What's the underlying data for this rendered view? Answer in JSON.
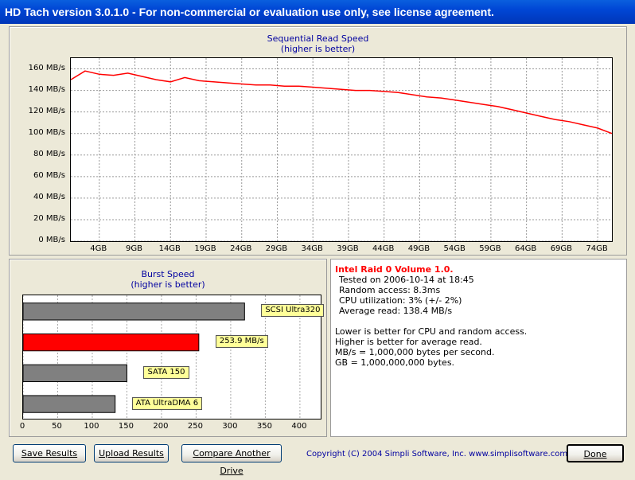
{
  "window": {
    "title": "HD Tach version 3.0.1.0  - For non-commercial or evaluation use only, see license agreement."
  },
  "read_chart": {
    "title": "Sequential Read Speed",
    "subtitle": "(higher is better)",
    "y_ticks": [
      "160 MB/s",
      "140 MB/s",
      "120 MB/s",
      "100 MB/s",
      "80 MB/s",
      "60 MB/s",
      "40 MB/s",
      "20 MB/s",
      "0 MB/s"
    ],
    "x_ticks": [
      "4GB",
      "9GB",
      "14GB",
      "19GB",
      "24GB",
      "29GB",
      "34GB",
      "39GB",
      "44GB",
      "49GB",
      "54GB",
      "59GB",
      "64GB",
      "69GB",
      "74GB"
    ],
    "line_color": "#ff0000"
  },
  "burst_chart": {
    "title": "Burst Speed",
    "subtitle": "(higher is better)",
    "x_ticks": [
      "0",
      "50",
      "100",
      "150",
      "200",
      "250",
      "300",
      "350",
      "400"
    ]
  },
  "chart_data": [
    {
      "type": "line",
      "title": "Sequential Read Speed",
      "subtitle": "(higher is better)",
      "ylabel": "MB/s",
      "xlim": [
        0,
        76
      ],
      "ylim": [
        0,
        170
      ],
      "series": [
        {
          "x": [
            0,
            2,
            4,
            6,
            8,
            10,
            12,
            14,
            16,
            18,
            20,
            22,
            24,
            26,
            28,
            30,
            32,
            34,
            36,
            38,
            40,
            42,
            44,
            46,
            48,
            50,
            52,
            54,
            56,
            58,
            60,
            62,
            64,
            66,
            68,
            70,
            72,
            74,
            76
          ],
          "y": [
            150,
            158,
            155,
            154,
            156,
            153,
            150,
            148,
            152,
            149,
            148,
            147,
            146,
            145,
            145,
            144,
            144,
            143,
            142,
            141,
            140,
            140,
            139,
            138,
            136,
            134,
            133,
            131,
            129,
            127,
            125,
            122,
            119,
            116,
            113,
            111,
            108,
            105,
            100
          ]
        }
      ]
    },
    {
      "type": "bar",
      "title": "Burst Speed",
      "subtitle": "(higher is better)",
      "xlim": [
        0,
        430
      ],
      "categories": [
        "SCSI Ultra320",
        "253.9 MB/s",
        "SATA 150",
        "ATA UltraDMA 6"
      ],
      "values": [
        320,
        253.9,
        150,
        133
      ],
      "colors": [
        "#808080",
        "#ff0000",
        "#808080",
        "#808080"
      ]
    }
  ],
  "info": {
    "drive_name": "Intel Raid 0 Volume 1.0.",
    "tested_on": "Tested on 2006-10-14 at 18:45",
    "random_access": "Random access: 8.3ms",
    "cpu": "CPU utilization: 3% (+/- 2%)",
    "average": "Average read: 138.4 MB/s",
    "note1": "Lower is better for CPU and random access.",
    "note2": "Higher is better for average read.",
    "note3": "MB/s = 1,000,000 bytes per second.",
    "note4": "GB = 1,000,000,000 bytes."
  },
  "footer": {
    "save": "Save Results",
    "upload": "Upload Results",
    "compare": "Compare Another Drive",
    "copyright": "Copyright (C) 2004 Simpli Software, Inc. www.simplisoftware.com",
    "done": "Done"
  }
}
